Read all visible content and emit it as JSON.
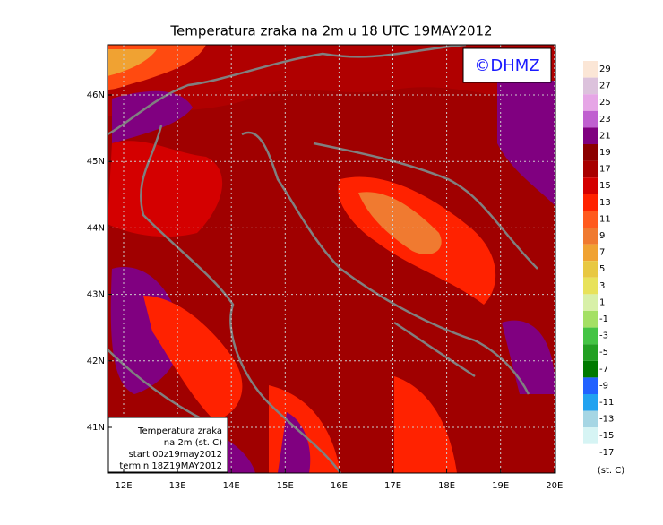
{
  "title": "Temperatura zraka na 2m u 18 UTC 19MAY2012",
  "logo": "©DHMZ",
  "map": {
    "lon_labels": [
      "12E",
      "13E",
      "14E",
      "15E",
      "16E",
      "17E",
      "18E",
      "19E",
      "20E"
    ],
    "lat_labels": [
      "46N",
      "45N",
      "44N",
      "43N",
      "42N",
      "41N"
    ]
  },
  "info_box": [
    "Temperatura zraka",
    "na 2m (st. C)",
    "start 00z19may2012",
    "termin 18Z19MAY2012"
  ],
  "colorbar": {
    "unit": "(st. C)",
    "levels": [
      29,
      27,
      25,
      23,
      21,
      19,
      17,
      15,
      13,
      11,
      9,
      7,
      5,
      3,
      1,
      -1,
      -3,
      -5,
      -7,
      -9,
      -11,
      -13,
      -15,
      -17
    ],
    "colors": [
      "#fbe6d6",
      "#dcc2dc",
      "#e6a6e6",
      "#c060d0",
      "#800080",
      "#8b0000",
      "#a80000",
      "#d40000",
      "#ff2200",
      "#ff5a1e",
      "#f07a30",
      "#f0a232",
      "#e8c842",
      "#e8e25a",
      "#d8f0a8",
      "#a4e064",
      "#44c444",
      "#22a022",
      "#007a00",
      "#2262ff",
      "#22a2f0",
      "#a6d6e4",
      "#d6f4f4",
      "#ffffff"
    ]
  }
}
